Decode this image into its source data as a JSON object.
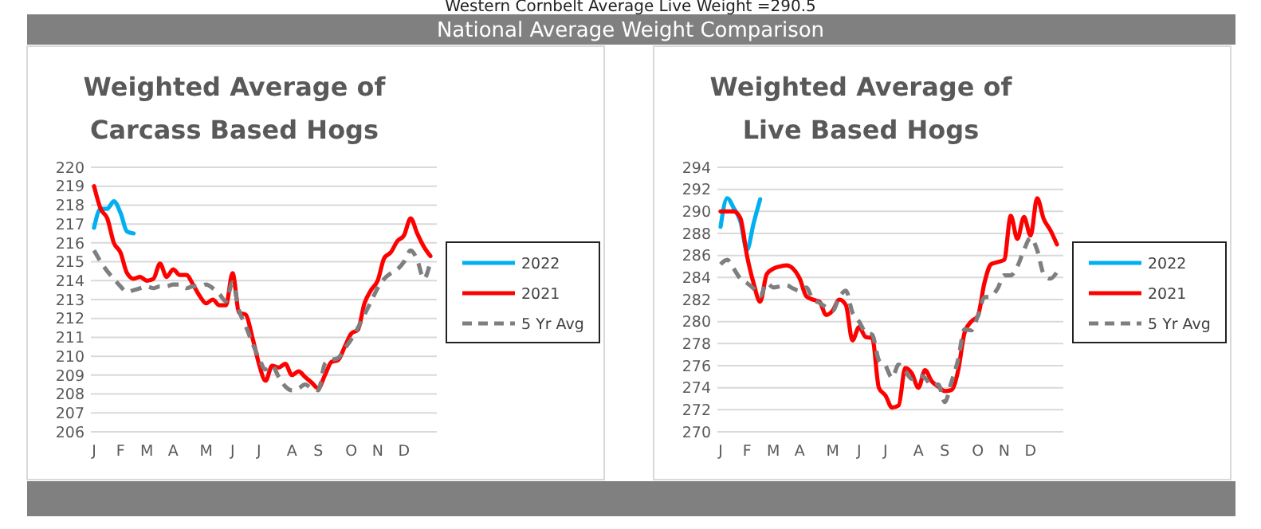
{
  "chart_data": [
    {
      "type": "other",
      "title": "National Average Weight Comparison",
      "annotations": [
        "Western Cornbelt Average Live Weight =290.5"
      ]
    },
    {
      "type": "line",
      "title": "Weighted Average of\nCarcass Based Hogs",
      "categories": [
        "J",
        null,
        null,
        null,
        "F",
        null,
        null,
        null,
        "M",
        null,
        null,
        null,
        "A",
        null,
        null,
        null,
        null,
        "M",
        null,
        null,
        null,
        "J",
        null,
        null,
        null,
        "J",
        null,
        null,
        null,
        null,
        "A",
        null,
        null,
        null,
        "S",
        null,
        null,
        null,
        null,
        "O",
        null,
        null,
        null,
        "N",
        null,
        null,
        null,
        "D",
        null,
        null,
        null,
        null
      ],
      "ylim": [
        206,
        220
      ],
      "yticks": [
        206,
        207,
        208,
        209,
        210,
        211,
        212,
        213,
        214,
        215,
        216,
        217,
        218,
        219,
        220
      ],
      "grid": "y",
      "legend": "right",
      "series": [
        {
          "name": "2022",
          "color": "#00b0f0",
          "values": [
            216.8,
            217.8,
            217.8,
            218.2,
            217.6,
            216.6,
            216.5,
            null,
            null,
            null,
            null,
            null,
            null,
            null,
            null,
            null,
            null,
            null,
            null,
            null,
            null,
            null,
            null,
            null,
            null,
            null,
            null,
            null,
            null,
            null,
            null,
            null,
            null,
            null,
            null,
            null,
            null,
            null,
            null,
            null,
            null,
            null,
            null,
            null,
            null,
            null,
            null,
            null,
            null,
            null,
            null,
            null
          ]
        },
        {
          "name": "2021",
          "color": "#ff0000",
          "values": [
            219.0,
            217.8,
            217.3,
            216.0,
            215.5,
            214.4,
            214.1,
            214.2,
            214.0,
            214.1,
            214.9,
            214.2,
            214.6,
            214.3,
            214.3,
            213.8,
            213.2,
            212.8,
            213.0,
            212.7,
            212.7,
            214.4,
            212.3,
            212.2,
            211.0,
            209.6,
            208.7,
            209.5,
            209.4,
            209.6,
            209.0,
            209.2,
            208.9,
            208.6,
            208.3,
            209.0,
            209.7,
            209.8,
            210.5,
            211.2,
            211.4,
            212.8,
            213.5,
            214.0,
            215.2,
            215.5,
            216.1,
            216.4,
            217.3,
            216.5,
            215.8,
            215.3
          ]
        },
        {
          "name": "5 Yr Avg",
          "color": "#7f7f7f",
          "line_style": "dashed",
          "values": [
            215.6,
            215.0,
            214.5,
            214.1,
            213.7,
            213.4,
            213.5,
            213.6,
            213.7,
            213.6,
            213.7,
            213.7,
            213.8,
            213.8,
            213.6,
            213.7,
            213.7,
            213.8,
            213.6,
            213.3,
            212.9,
            213.9,
            212.4,
            211.6,
            210.7,
            209.9,
            209.3,
            209.5,
            208.9,
            208.4,
            208.2,
            208.3,
            208.5,
            208.3,
            208.2,
            209.6,
            209.8,
            209.9,
            210.4,
            210.9,
            211.5,
            212.2,
            212.9,
            213.6,
            214.1,
            214.4,
            214.6,
            215.0,
            215.6,
            215.1,
            214.1,
            215.0
          ]
        }
      ]
    },
    {
      "type": "line",
      "title": "Weighted Average of\nLive Based Hogs",
      "categories": [
        "J",
        null,
        null,
        null,
        "F",
        null,
        null,
        null,
        "M",
        null,
        null,
        null,
        "A",
        null,
        null,
        null,
        null,
        "M",
        null,
        null,
        null,
        "J",
        null,
        null,
        null,
        "J",
        null,
        null,
        null,
        null,
        "A",
        null,
        null,
        null,
        "S",
        null,
        null,
        null,
        null,
        "O",
        null,
        null,
        null,
        "N",
        null,
        null,
        null,
        "D",
        null,
        null,
        null,
        null
      ],
      "ylim": [
        270,
        294
      ],
      "yticks": [
        270,
        272,
        274,
        276,
        278,
        280,
        282,
        284,
        286,
        288,
        290,
        292,
        294
      ],
      "grid": "y",
      "legend": "right",
      "series": [
        {
          "name": "2022",
          "color": "#00b0f0",
          "values": [
            288.6,
            291.2,
            290.3,
            289.1,
            286.5,
            288.9,
            291.1,
            null,
            null,
            null,
            null,
            null,
            null,
            null,
            null,
            null,
            null,
            null,
            null,
            null,
            null,
            null,
            null,
            null,
            null,
            null,
            null,
            null,
            null,
            null,
            null,
            null,
            null,
            null,
            null,
            null,
            null,
            null,
            null,
            null,
            null,
            null,
            null,
            null,
            null,
            null,
            null,
            null,
            null,
            null,
            null,
            null
          ]
        },
        {
          "name": "2021",
          "color": "#ff0000",
          "values": [
            290.0,
            290.0,
            290.0,
            289.4,
            286.0,
            283.5,
            281.8,
            284.3,
            284.8,
            285.0,
            285.1,
            284.8,
            283.9,
            282.3,
            282.0,
            281.8,
            280.6,
            281.0,
            282.0,
            281.5,
            278.3,
            279.5,
            278.6,
            278.5,
            274.0,
            273.3,
            272.2,
            272.4,
            275.8,
            275.3,
            274.0,
            275.6,
            274.6,
            274.1,
            273.7,
            273.8,
            275.5,
            279.0,
            280.0,
            280.5,
            283.5,
            285.2,
            285.4,
            285.6,
            289.6,
            287.5,
            289.5,
            287.8,
            291.2,
            289.3,
            288.3,
            287.0
          ]
        },
        {
          "name": "5 Yr Avg",
          "color": "#7f7f7f",
          "line_style": "dashed",
          "values": [
            285.2,
            285.6,
            284.8,
            283.9,
            283.5,
            283.0,
            282.3,
            283.5,
            283.1,
            283.2,
            283.3,
            283.0,
            282.8,
            283.1,
            282.0,
            281.7,
            281.3,
            281.0,
            282.2,
            282.8,
            280.8,
            280.0,
            279.0,
            278.8,
            276.5,
            276.0,
            274.9,
            276.1,
            275.5,
            274.8,
            275.1,
            274.9,
            274.2,
            274.3,
            272.7,
            274.5,
            276.5,
            279.3,
            279.2,
            280.5,
            282.2,
            282.3,
            283.0,
            284.2,
            284.2,
            285.0,
            286.5,
            287.6,
            286.5,
            284.3,
            283.9,
            284.5
          ]
        }
      ]
    }
  ]
}
